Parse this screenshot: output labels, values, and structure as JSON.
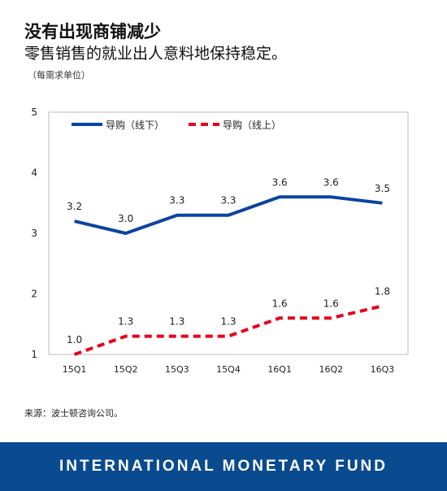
{
  "header": {
    "title": "没有出现商铺减少",
    "subtitle": "零售销售的就业出人意料地保持稳定。",
    "unit": "（每需求单位）"
  },
  "source": "来源：波士顿咨询公司。",
  "footer": {
    "org": "INTERNATIONAL MONETARY FUND"
  },
  "colors": {
    "offline": "#0a44a0",
    "online": "#e8001c",
    "footer_bg": "#0a4a8f"
  },
  "chart_data": {
    "type": "line",
    "categories": [
      "15Q1",
      "15Q2",
      "15Q3",
      "15Q4",
      "16Q1",
      "16Q2",
      "16Q3"
    ],
    "ylim": [
      1,
      5
    ],
    "yticks": [
      1,
      2,
      3,
      4,
      5
    ],
    "grid": false,
    "legend": "top-left",
    "series": [
      {
        "name": "导购（线下）",
        "values": [
          3.2,
          3.0,
          3.3,
          3.3,
          3.6,
          3.6,
          3.5
        ],
        "labels": [
          "3.2",
          "3.0",
          "3.3",
          "3.3",
          "3.6",
          "3.6",
          "3.5"
        ],
        "color": "#0a44a0",
        "style": "solid"
      },
      {
        "name": "导购（线上）",
        "values": [
          1.0,
          1.3,
          1.3,
          1.3,
          1.6,
          1.6,
          1.8
        ],
        "labels": [
          "1.0",
          "1.3",
          "1.3",
          "1.3",
          "1.6",
          "1.6",
          "1.8"
        ],
        "color": "#e8001c",
        "style": "dashed"
      }
    ]
  }
}
